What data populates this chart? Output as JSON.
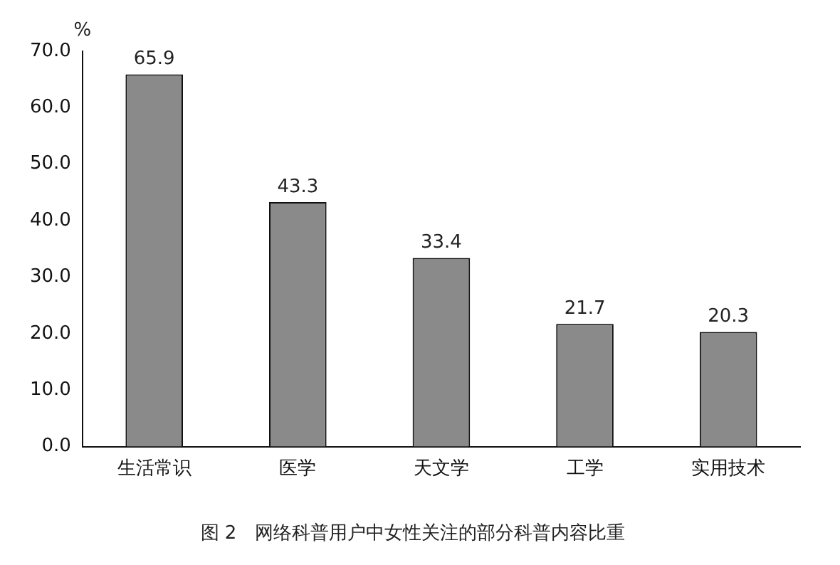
{
  "chart_data": {
    "type": "bar",
    "title": "图 2　网络科普用户中女性关注的部分科普内容比重",
    "ylabel": "%",
    "categories": [
      "生活常识",
      "医学",
      "天文学",
      "工学",
      "实用技术"
    ],
    "values": [
      65.9,
      43.3,
      33.4,
      21.7,
      20.3
    ],
    "color": "#8a8a8a",
    "ylim": [
      0,
      70
    ],
    "yticks": [
      {
        "value": 0,
        "label": "0.0"
      },
      {
        "value": 10,
        "label": "10.0"
      },
      {
        "value": 20,
        "label": "20.0"
      },
      {
        "value": 30,
        "label": "30.0"
      },
      {
        "value": 40,
        "label": "40.0"
      },
      {
        "value": 50,
        "label": "50.0"
      },
      {
        "value": 60,
        "label": "60.0"
      },
      {
        "value": 70,
        "label": "70.0"
      }
    ],
    "grid": false,
    "legend": false,
    "data_labels": true
  }
}
